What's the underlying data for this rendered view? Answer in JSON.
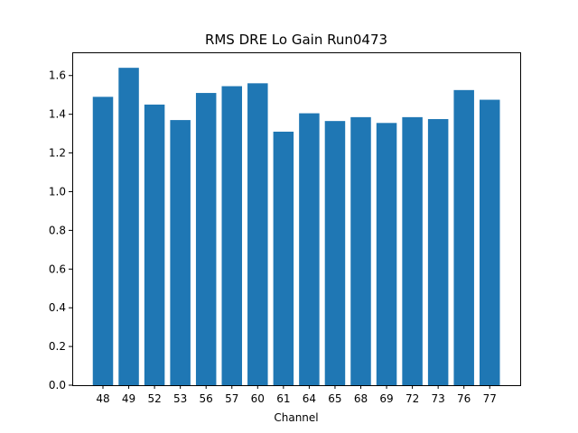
{
  "chart_data": {
    "type": "bar",
    "title": "RMS DRE Lo Gain Run0473",
    "xlabel": "Channel",
    "ylabel": "",
    "categories": [
      "48",
      "49",
      "52",
      "53",
      "56",
      "57",
      "60",
      "61",
      "64",
      "65",
      "68",
      "69",
      "72",
      "73",
      "76",
      "77"
    ],
    "values": [
      1.49,
      1.64,
      1.45,
      1.37,
      1.51,
      1.545,
      1.56,
      1.31,
      1.405,
      1.365,
      1.385,
      1.355,
      1.385,
      1.375,
      1.525,
      1.475
    ],
    "ylim": [
      0,
      1.72
    ],
    "yticks": [
      0.0,
      0.2,
      0.4,
      0.6,
      0.8,
      1.0,
      1.2,
      1.4,
      1.6
    ],
    "ytick_labels": [
      "0.0",
      "0.2",
      "0.4",
      "0.6",
      "0.8",
      "1.0",
      "1.2",
      "1.4",
      "1.6"
    ],
    "grid": false,
    "legend": "none",
    "bar_color": "#1f77b4"
  }
}
